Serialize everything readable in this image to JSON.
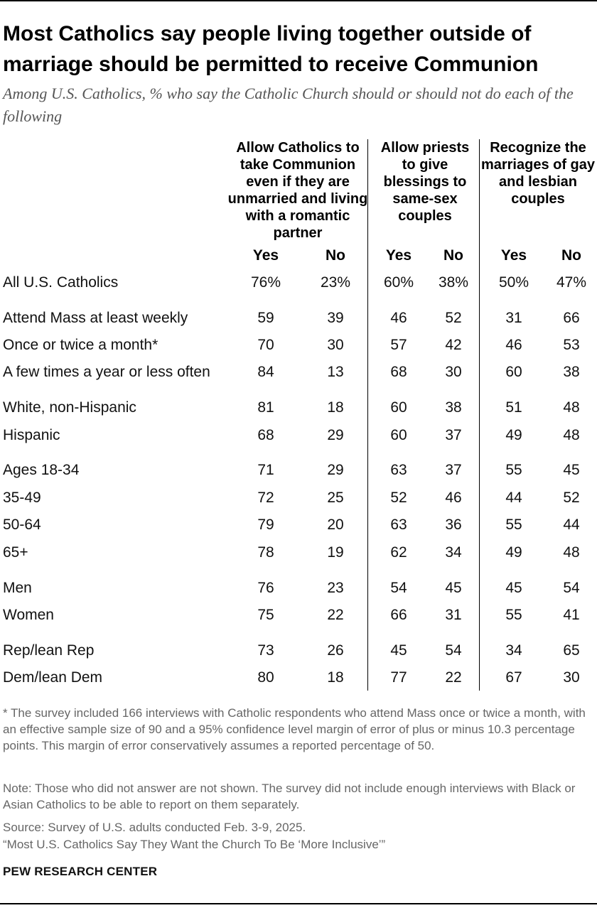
{
  "title": "Most Catholics say people living together outside of marriage should be permitted to receive Communion",
  "subtitle": "Among U.S. Catholics, % who say the Catholic Church should or should not do each of the following",
  "chart_data": {
    "type": "table",
    "column_groups": [
      {
        "title": "Allow Catholics to take Communion even if they are unmarried and living with a romantic partner",
        "labels": [
          "Yes",
          "No"
        ]
      },
      {
        "title": "Allow priests to give blessings to same-sex couples",
        "labels": [
          "Yes",
          "No"
        ]
      },
      {
        "title": "Recognize the marriages of gay and lesbian couples",
        "labels": [
          "Yes",
          "No"
        ]
      }
    ],
    "rows": [
      {
        "label": "All U.S. Catholics",
        "values": [
          "76%",
          "23%",
          "60%",
          "38%",
          "50%",
          "47%"
        ]
      },
      {
        "label": "Attend Mass at least weekly",
        "values": [
          "59",
          "39",
          "46",
          "52",
          "31",
          "66"
        ]
      },
      {
        "label": "Once or twice a month*",
        "values": [
          "70",
          "30",
          "57",
          "42",
          "46",
          "53"
        ]
      },
      {
        "label": "A few times a year or less often",
        "values": [
          "84",
          "13",
          "68",
          "30",
          "60",
          "38"
        ]
      },
      {
        "label": "White, non-Hispanic",
        "values": [
          "81",
          "18",
          "60",
          "38",
          "51",
          "48"
        ]
      },
      {
        "label": "Hispanic",
        "values": [
          "68",
          "29",
          "60",
          "37",
          "49",
          "48"
        ]
      },
      {
        "label": "Ages 18-34",
        "values": [
          "71",
          "29",
          "63",
          "37",
          "55",
          "45"
        ]
      },
      {
        "label": "35-49",
        "values": [
          "72",
          "25",
          "52",
          "46",
          "44",
          "52"
        ]
      },
      {
        "label": "50-64",
        "values": [
          "79",
          "20",
          "63",
          "36",
          "55",
          "44"
        ]
      },
      {
        "label": "65+",
        "values": [
          "78",
          "19",
          "62",
          "34",
          "49",
          "48"
        ]
      },
      {
        "label": "Men",
        "values": [
          "76",
          "23",
          "54",
          "45",
          "45",
          "54"
        ]
      },
      {
        "label": "Women",
        "values": [
          "75",
          "22",
          "66",
          "31",
          "55",
          "41"
        ]
      },
      {
        "label": "Rep/lean Rep",
        "values": [
          "73",
          "26",
          "45",
          "54",
          "34",
          "65"
        ]
      },
      {
        "label": "Dem/lean Dem",
        "values": [
          "80",
          "18",
          "77",
          "22",
          "67",
          "30"
        ]
      }
    ]
  },
  "footnotes": [
    "* The survey included 166 interviews with Catholic respondents who attend Mass once or twice a month, with an effective sample size of 90 and a 95% confidence level margin of error of plus or minus 10.3 percentage points. This margin of error conservatively assumes a reported percentage of 50.",
    "Note: Those who did not answer are not shown. The survey did not include enough interviews with Black or Asian Catholics to be able to report on them separately.",
    "Source: Survey of U.S. adults conducted Feb. 3-9, 2025.",
    "“Most U.S. Catholics Say They Want the Church To Be ‘More Inclusive’”"
  ],
  "brand": "PEW RESEARCH CENTER"
}
